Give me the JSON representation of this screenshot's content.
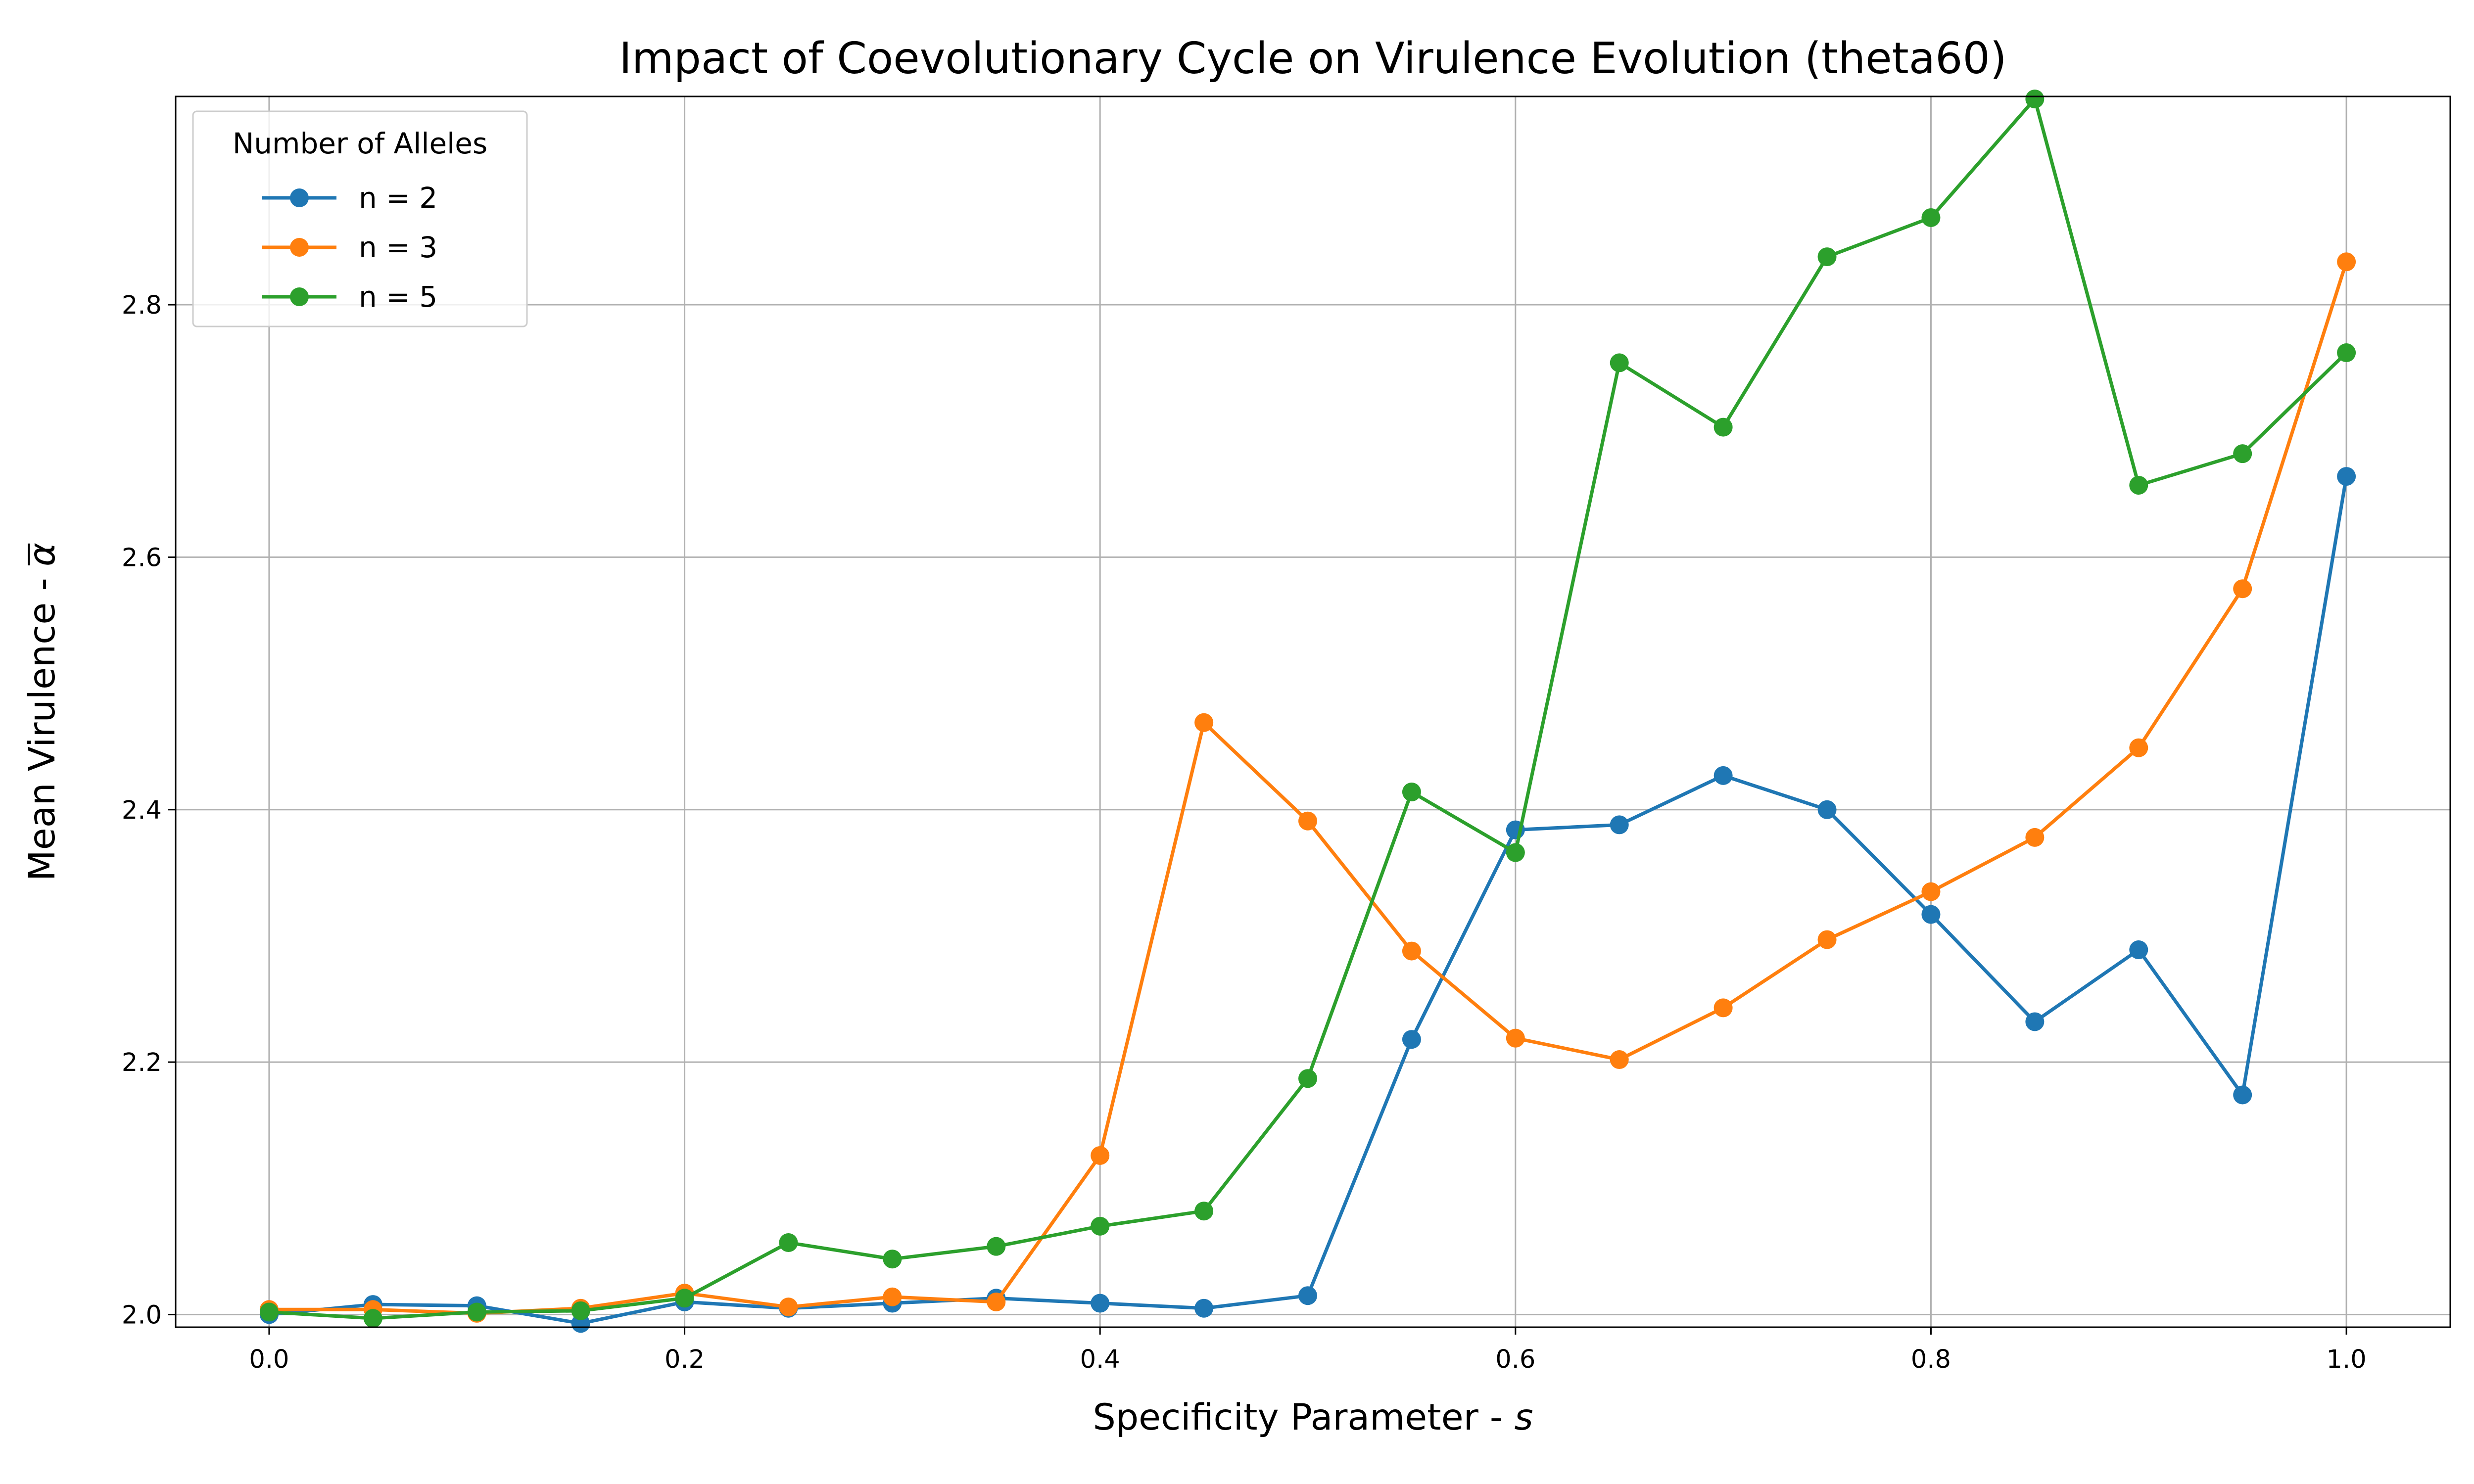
{
  "chart_data": {
    "type": "line",
    "title": "Impact of Coevolutionary Cycle on Virulence Evolution (theta60)",
    "xlabel": "Specificity Parameter - ",
    "xlabel_var": "s",
    "ylabel": "Mean Virulence - ",
    "ylabel_var": "α",
    "xlim": [
      -0.045,
      1.05
    ],
    "ylim": [
      1.99,
      2.965
    ],
    "xticks": [
      0.0,
      0.2,
      0.4,
      0.6,
      0.8,
      1.0
    ],
    "xtick_labels": [
      "0.0",
      "0.2",
      "0.4",
      "0.6",
      "0.8",
      "1.0"
    ],
    "yticks": [
      2.0,
      2.2,
      2.4,
      2.6,
      2.8
    ],
    "ytick_labels": [
      "2.0",
      "2.2",
      "2.4",
      "2.6",
      "2.8"
    ],
    "grid": true,
    "legend_title": "Number of Alleles",
    "legend_position": "top-left",
    "x": [
      0.0,
      0.05,
      0.1,
      0.15,
      0.2,
      0.25,
      0.3,
      0.35,
      0.4,
      0.45,
      0.5,
      0.55,
      0.6,
      0.65,
      0.7,
      0.75,
      0.8,
      0.85,
      0.9,
      0.95,
      1.0
    ],
    "series": [
      {
        "name": "n = 2",
        "color": "#1f77b4",
        "values": [
          2.0,
          2.008,
          2.007,
          1.993,
          2.01,
          2.005,
          2.009,
          2.013,
          2.009,
          2.005,
          2.015,
          2.218,
          2.384,
          2.388,
          2.427,
          2.4,
          2.317,
          2.232,
          2.289,
          2.174,
          2.664
        ]
      },
      {
        "name": "n = 3",
        "color": "#ff7f0e",
        "values": [
          2.004,
          2.004,
          2.001,
          2.005,
          2.017,
          2.006,
          2.014,
          2.01,
          2.126,
          2.469,
          2.391,
          2.288,
          2.219,
          2.202,
          2.243,
          2.297,
          2.335,
          2.378,
          2.449,
          2.575,
          2.834
        ]
      },
      {
        "name": "n = 5",
        "color": "#2ca02c",
        "values": [
          2.002,
          1.997,
          2.002,
          2.003,
          2.013,
          2.057,
          2.044,
          2.054,
          2.07,
          2.082,
          2.187,
          2.414,
          2.366,
          2.754,
          2.703,
          2.838,
          2.869,
          2.963,
          2.657,
          2.682,
          2.762
        ]
      }
    ]
  }
}
